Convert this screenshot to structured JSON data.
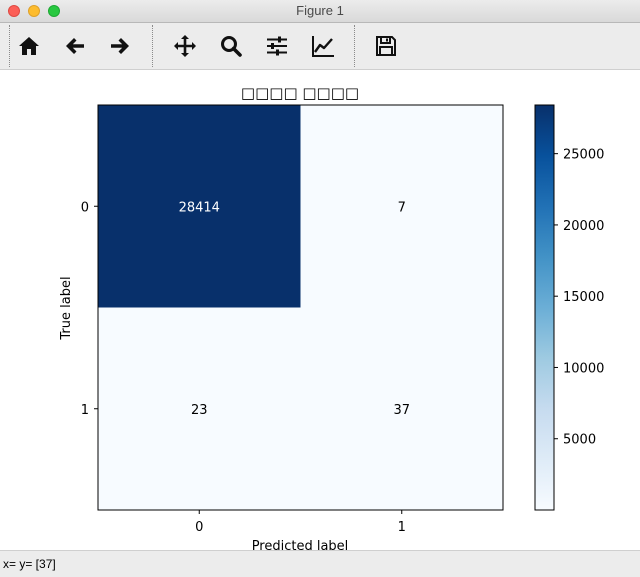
{
  "window": {
    "title": "Figure 1"
  },
  "toolbar": {
    "buttons": [
      {
        "name": "home",
        "icon": "home-icon"
      },
      {
        "name": "back",
        "icon": "arrow-left-icon"
      },
      {
        "name": "forward",
        "icon": "arrow-right-icon"
      },
      {
        "name": "pan",
        "icon": "move-icon"
      },
      {
        "name": "zoom",
        "icon": "magnifier-icon"
      },
      {
        "name": "configure-subplots",
        "icon": "sliders-icon"
      },
      {
        "name": "edit-axis",
        "icon": "line-chart-icon"
      },
      {
        "name": "save",
        "icon": "floppy-disk-icon"
      }
    ]
  },
  "status": {
    "text": "x= y= [37]"
  },
  "chart_data": {
    "type": "heatmap",
    "title": "□□□□ □□□□",
    "xlabel": "Predicted label",
    "ylabel": "True label",
    "x_categories": [
      "0",
      "1"
    ],
    "y_categories": [
      "0",
      "1"
    ],
    "matrix": [
      [
        28414,
        7
      ],
      [
        23,
        37
      ]
    ],
    "colormap": "Blues",
    "colorbar": {
      "min": 0,
      "max": 28414,
      "ticks": [
        5000,
        10000,
        15000,
        20000,
        25000
      ]
    },
    "text_color_dark": "#ffffff",
    "text_color_light": "#000000",
    "colors": {
      "low": "#f7fbff",
      "high": "#08306b"
    }
  }
}
